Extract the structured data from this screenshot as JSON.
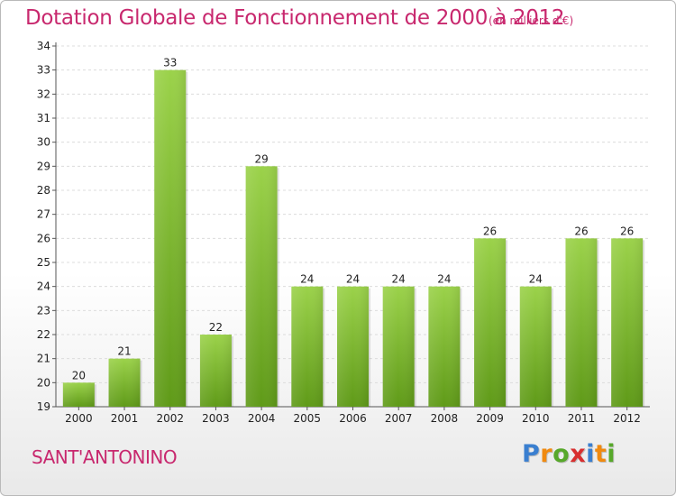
{
  "chart_data": {
    "type": "bar",
    "title": "Dotation Globale de Fonctionnement de 2000 à 2012",
    "subtitle": "(en milliers d'€)",
    "categories": [
      "2000",
      "2001",
      "2002",
      "2003",
      "2004",
      "2005",
      "2006",
      "2007",
      "2008",
      "2009",
      "2010",
      "2011",
      "2012"
    ],
    "values": [
      20,
      21,
      33,
      22,
      29,
      24,
      24,
      24,
      24,
      26,
      24,
      26,
      26
    ],
    "ylim": [
      19,
      34
    ],
    "yticks": [
      19,
      20,
      21,
      22,
      23,
      24,
      25,
      26,
      27,
      28,
      29,
      30,
      31,
      32,
      33,
      34
    ],
    "grid": true,
    "bar_color_top": "#9bd24a",
    "bar_color_bottom": "#5f9a18"
  },
  "commune_name": "SANT'ANTONINO",
  "logo": {
    "letters": [
      "P",
      "r",
      "o",
      "x",
      "i",
      "t",
      "i"
    ],
    "colors": [
      "#3a7fd0",
      "#f08a10",
      "#57a82a",
      "#d82f2f",
      "#3a7fd0",
      "#f08a10",
      "#57a82a"
    ]
  }
}
